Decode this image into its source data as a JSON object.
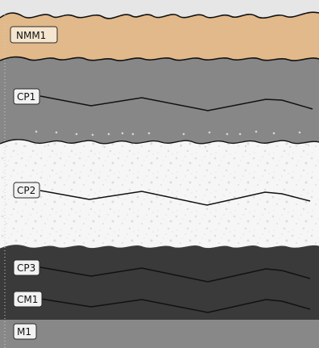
{
  "layers": [
    {
      "id": "nmm1",
      "label": "NMM1",
      "color": "#e2b98a"
    },
    {
      "id": "cp1",
      "label": "CP1",
      "color": "#878787"
    },
    {
      "id": "cp2",
      "label": "CP2",
      "color": "#f5f5f5"
    },
    {
      "id": "cp3",
      "label": "CP3",
      "color": "#3a3a3a"
    },
    {
      "id": "cm1",
      "label": "CM1",
      "color": "#3a3a3a"
    },
    {
      "id": "m1",
      "label": "M1",
      "color": "#888888"
    }
  ],
  "colors": {
    "sky": "#e6e6e6",
    "outline": "#111111",
    "dots": "#cfcfcf"
  }
}
